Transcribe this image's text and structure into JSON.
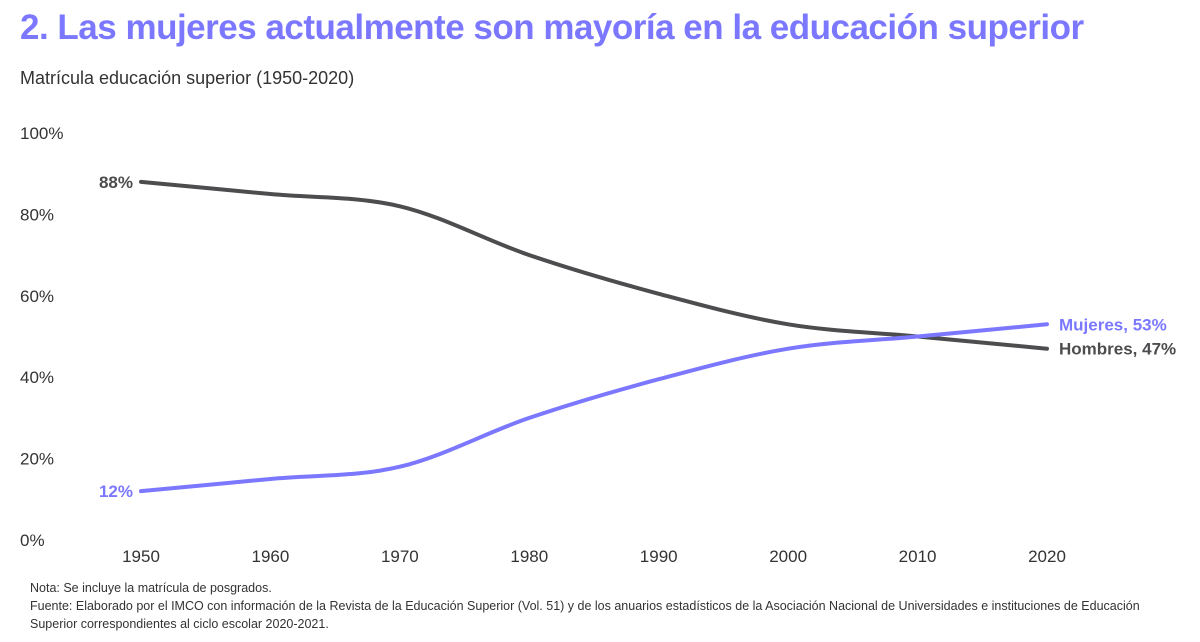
{
  "title": "2. Las mujeres actualmente son mayoría en la educación superior",
  "subtitle": "Matrícula educación superior (1950-2020)",
  "notes": {
    "nota": "Nota: Se incluye la matrícula de posgrados.",
    "fuente": "Fuente: Elaborado por el IMCO con información de la Revista de la Educación Superior (Vol. 51) y de los anuarios estadísticos de la Asociación Nacional de Universidades e instituciones de Educación Superior correspondientes al ciclo escolar 2020-2021."
  },
  "chart_data": {
    "type": "line",
    "title": "2. Las mujeres actualmente son mayoría en la educación superior",
    "subtitle": "Matrícula educación superior (1950-2020)",
    "x": [
      1950,
      1960,
      1970,
      1980,
      1990,
      2000,
      2010,
      2020
    ],
    "x_ticks": [
      "1950",
      "1960",
      "1970",
      "1980",
      "1990",
      "2000",
      "2010",
      "2020"
    ],
    "y_ticks": [
      "0%",
      "20%",
      "40%",
      "60%",
      "80%",
      "100%"
    ],
    "ylim": [
      0,
      100
    ],
    "grid": false,
    "series": [
      {
        "name": "Hombres",
        "values": [
          88,
          85,
          82,
          70,
          60.5,
          53,
          50,
          47
        ],
        "color": "#4d4d4f",
        "start_label": "88%",
        "end_label": "Hombres, 47%"
      },
      {
        "name": "Mujeres",
        "values": [
          12,
          15,
          18,
          30,
          39.5,
          47,
          50,
          53
        ],
        "color": "#7b78ff",
        "start_label": "12%",
        "end_label": "Mujeres, 53%"
      }
    ]
  }
}
